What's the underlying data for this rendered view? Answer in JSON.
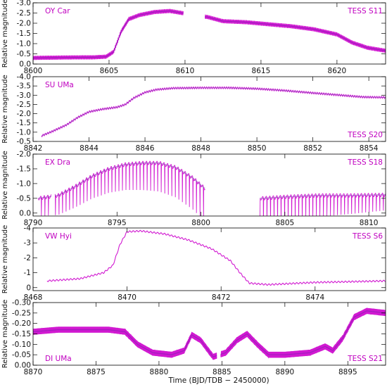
{
  "figure": {
    "xlabel": "Time  (BJD/TDB − 2450000)",
    "series_color": "#cc00cc",
    "core_color": "#7a1fb0",
    "accent_color": "#1f5fd8"
  },
  "chart_data": [
    {
      "type": "scatter",
      "star": "OY Car",
      "sector": "TESS S11",
      "ylabel": "Relative magnitude",
      "xlim": [
        8600,
        8623.2
      ],
      "ylim": [
        0.0,
        -3.0
      ],
      "xticks": [
        8600,
        8605,
        8610,
        8615,
        8620
      ],
      "yticks": [
        0.0,
        -0.5,
        -1.0,
        -1.5,
        -2.0,
        -2.5,
        -3.0
      ],
      "ytick_labels": [
        "0.0",
        "-0.5",
        "-1.0",
        "-1.5",
        "-2.0",
        "-2.5",
        "-3.0"
      ],
      "label_pos": "bottom-star",
      "x": [
        8600,
        8602,
        8604,
        8604.8,
        8605.3,
        8605.8,
        8606.3,
        8607,
        8608,
        8609,
        8609.8,
        8611.5,
        8612.5,
        8614,
        8615.5,
        8617,
        8618.5,
        8620,
        8621,
        8622,
        8623.2
      ],
      "y": [
        -0.3,
        -0.32,
        -0.33,
        -0.36,
        -0.6,
        -1.6,
        -2.2,
        -2.4,
        -2.55,
        -2.6,
        -2.5,
        -2.3,
        -2.1,
        -2.05,
        -1.95,
        -1.85,
        -1.7,
        -1.45,
        -1.05,
        -0.8,
        -0.65
      ],
      "gaps": [
        [
          8609.9,
          8611.3
        ]
      ],
      "periodic": {
        "period": 0.0631,
        "amplitude": 0.2,
        "dip_depth": 0.45
      }
    },
    {
      "type": "scatter",
      "star": "SU UMa",
      "sector": "TESS S20",
      "ylabel": "Relative magnitude",
      "xlim": [
        8842,
        8854.6
      ],
      "ylim": [
        -0.5,
        -4.0
      ],
      "xticks": [
        8842,
        8844,
        8846,
        8848,
        8850,
        8852,
        8854
      ],
      "yticks": [
        -0.5,
        -1.0,
        -1.5,
        -2.0,
        -2.5,
        -3.0,
        -3.5,
        -4.0
      ],
      "ytick_labels": [
        "-0.5",
        "-1.0",
        "-1.5",
        "-2.0",
        "-2.5",
        "-3.0",
        "-3.5",
        "-4.0"
      ],
      "label_pos": "bottom-sector",
      "x": [
        8842.3,
        8842.7,
        8843.2,
        8843.6,
        8844,
        8844.5,
        8845,
        8845.3,
        8845.6,
        8846,
        8846.4,
        8847,
        8848,
        8849,
        8850,
        8851,
        8852,
        8853,
        8853.8,
        8854.6
      ],
      "y": [
        -0.8,
        -1.05,
        -1.4,
        -1.8,
        -2.1,
        -2.25,
        -2.35,
        -2.5,
        -2.85,
        -3.15,
        -3.3,
        -3.38,
        -3.4,
        -3.4,
        -3.35,
        -3.25,
        -3.12,
        -3.0,
        -2.9,
        -2.88
      ],
      "gaps": [],
      "periodic": {
        "period": 0.079,
        "amplitude": 0.12,
        "dip_depth": 0.0
      }
    },
    {
      "type": "scatter",
      "star": "EX Dra",
      "sector": "TESS S18",
      "ylabel": "Relative magnitude",
      "xlim": [
        8790,
        8811
      ],
      "ylim": [
        0.1,
        -2.0
      ],
      "xticks": [
        8790,
        8795,
        8800,
        8805,
        8810
      ],
      "yticks": [
        0.0,
        -0.5,
        -1.0,
        -1.5,
        -2.0
      ],
      "ytick_labels": [
        "0.0",
        "-0.5",
        "-1.0",
        "-1.5",
        "-2.0"
      ],
      "label_pos": "top",
      "x": [
        8790.3,
        8791.5,
        8792.5,
        8793.5,
        8794.5,
        8795.5,
        8796.5,
        8797.5,
        8798.5,
        8799.5,
        8800.2,
        8803.6,
        8805,
        8807,
        8809,
        8811
      ],
      "y": [
        -0.5,
        -0.6,
        -0.9,
        -1.25,
        -1.5,
        -1.65,
        -1.7,
        -1.7,
        -1.55,
        -1.2,
        -0.85,
        -0.5,
        -0.55,
        -0.6,
        -0.6,
        -0.62
      ],
      "gaps": [
        [
          8791.1,
          8791.3
        ],
        [
          8800.25,
          8803.5
        ]
      ],
      "periodic": {
        "period": 0.2099,
        "amplitude": 0.12,
        "dip_depth": 1.1
      }
    },
    {
      "type": "line",
      "star": "VW Hyi",
      "sector": "TESS S6",
      "ylabel": "Relative magnitude",
      "xlim": [
        8468,
        8475.5
      ],
      "ylim": [
        0.2,
        -4.0
      ],
      "xticks": [
        8468,
        8470,
        8472,
        8474
      ],
      "yticks": [
        0,
        -1,
        -2,
        -3,
        -4
      ],
      "ytick_labels": [
        "0",
        "-1",
        "-2",
        "-3",
        "-4"
      ],
      "label_pos": "top",
      "x": [
        8468.3,
        8469,
        8469.5,
        8469.7,
        8469.85,
        8470,
        8470.3,
        8470.8,
        8471.3,
        8471.8,
        8472.2,
        8472.4,
        8472.6,
        8473,
        8474,
        8475.5
      ],
      "y": [
        -0.45,
        -0.6,
        -1.0,
        -1.5,
        -2.9,
        -3.75,
        -3.8,
        -3.6,
        -3.2,
        -2.6,
        -1.8,
        -1.0,
        -0.3,
        -0.2,
        -0.35,
        -0.45
      ],
      "gaps": [],
      "periodic": {
        "period": 0.074,
        "amplitude": 0.1,
        "dip_depth": 0.0
      }
    },
    {
      "type": "scatter",
      "star": "DI UMa",
      "sector": "TESS S21",
      "ylabel": "Relative magnitude",
      "xlim": [
        8870,
        8898
      ],
      "ylim": [
        0.0,
        -0.3
      ],
      "xticks": [
        8870,
        8875,
        8880,
        8885,
        8890,
        8895
      ],
      "yticks": [
        0.0,
        -0.05,
        -0.1,
        -0.15,
        -0.2,
        -0.25,
        -0.3
      ],
      "ytick_labels": [
        "0.00",
        "-0.05",
        "-0.10",
        "-0.15",
        "-0.20",
        "-0.25",
        "-0.30"
      ],
      "label_pos": "bottom",
      "x": [
        8870,
        8872,
        8874,
        8876,
        8877.3,
        8878.3,
        8879.5,
        8881,
        8882,
        8882.6,
        8883.3,
        8884.3,
        8885.3,
        8886.2,
        8887,
        8887.8,
        8888.7,
        8890,
        8892,
        8893.2,
        8893.8,
        8894.6,
        8895.5,
        8896.5,
        8898
      ],
      "y": [
        -0.16,
        -0.17,
        -0.17,
        -0.17,
        -0.16,
        -0.1,
        -0.06,
        -0.05,
        -0.07,
        -0.145,
        -0.12,
        -0.04,
        -0.06,
        -0.12,
        -0.15,
        -0.1,
        -0.05,
        -0.05,
        -0.06,
        -0.09,
        -0.07,
        -0.13,
        -0.23,
        -0.26,
        -0.25
      ],
      "gaps": [
        [
          8884.6,
          8884.9
        ]
      ],
      "periodic": {
        "period": 0.0546,
        "amplitude": 0.03,
        "dip_depth": 0.0
      }
    }
  ]
}
